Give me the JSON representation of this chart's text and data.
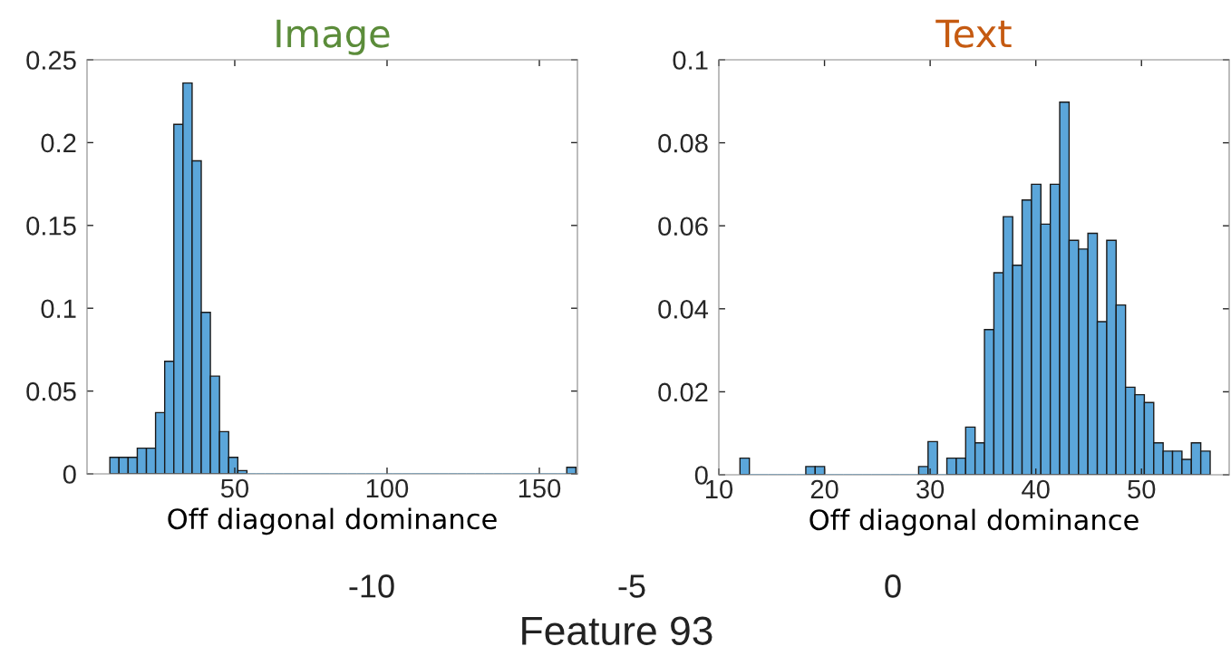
{
  "chart_data": [
    {
      "type": "histogram",
      "title": "Image",
      "xlabel": "Off diagonal dominance",
      "color": "#5ba6da",
      "bins": [
        9,
        12,
        15,
        18,
        21,
        24,
        27,
        30,
        33,
        36,
        39,
        42,
        45,
        48,
        51,
        54,
        57,
        60,
        63,
        66,
        69,
        72,
        75,
        78,
        81,
        84,
        87,
        90,
        93,
        96,
        99,
        102,
        105,
        108,
        111,
        114,
        117,
        120,
        123,
        126,
        129,
        132,
        135,
        138,
        141,
        144,
        147,
        150,
        153,
        156,
        159,
        162
      ],
      "values": [
        0.01,
        0.01,
        0.01,
        0.0155,
        0.0155,
        0.037,
        0.068,
        0.211,
        0.236,
        0.189,
        0.0975,
        0.059,
        0.0255,
        0.01,
        0.002,
        0,
        0,
        0,
        0,
        0,
        0,
        0,
        0,
        0,
        0,
        0,
        0,
        0,
        0,
        0,
        0,
        0,
        0,
        0,
        0,
        0,
        0,
        0,
        0,
        0,
        0,
        0,
        0,
        0,
        0,
        0,
        0,
        0,
        0,
        0,
        0.004
      ],
      "xlim": [
        1.5,
        162.5
      ],
      "ylim": [
        0,
        0.25
      ],
      "xticks": [
        50,
        100,
        150
      ],
      "yticks": [
        0,
        0.05,
        0.1,
        0.15,
        0.2,
        0.25
      ],
      "grid": false
    },
    {
      "type": "histogram",
      "title": "Text",
      "xlabel": "Off diagonal dominance",
      "color": "#5ba6da",
      "bins": [
        12.0,
        12.89,
        13.78,
        14.67,
        15.56,
        16.45,
        17.34,
        18.23,
        19.12,
        20.01,
        20.9,
        21.79,
        22.68,
        23.57,
        24.46,
        25.35,
        26.24,
        27.13,
        28.02,
        28.91,
        29.8,
        30.69,
        31.58,
        32.47,
        33.36,
        34.25,
        35.14,
        36.03,
        36.92,
        37.81,
        38.7,
        39.59,
        40.48,
        41.37,
        42.26,
        43.15,
        44.04,
        44.93,
        45.82,
        46.71,
        47.6,
        48.49,
        49.38,
        50.27,
        51.16,
        52.05,
        52.94,
        53.83,
        54.72,
        55.61,
        56.5
      ],
      "values": [
        0.004,
        0,
        0,
        0,
        0,
        0,
        0,
        0.002,
        0.002,
        0,
        0,
        0,
        0,
        0,
        0,
        0,
        0,
        0,
        0,
        0.002,
        0.008,
        0,
        0.004,
        0.004,
        0.0115,
        0.0077,
        0.035,
        0.0487,
        0.0622,
        0.0505,
        0.0662,
        0.07,
        0.0604,
        0.07,
        0.0898,
        0.0565,
        0.0544,
        0.0582,
        0.0369,
        0.0565,
        0.0409,
        0.0211,
        0.0193,
        0.0174,
        0.0077,
        0.0057,
        0.0057,
        0.0037,
        0.0077,
        0.0057
      ],
      "xlim": [
        10,
        58.3
      ],
      "ylim": [
        0,
        0.1
      ],
      "xticks": [
        10,
        20,
        30,
        40,
        50
      ],
      "yticks": [
        0,
        0.02,
        0.04,
        0.06,
        0.08,
        {
          "value": 0.1,
          "label": "0.1"
        }
      ],
      "grid": false
    },
    {
      "type": "other",
      "annotations": [
        "-10",
        "-5",
        "0",
        "Feature 93"
      ]
    }
  ]
}
